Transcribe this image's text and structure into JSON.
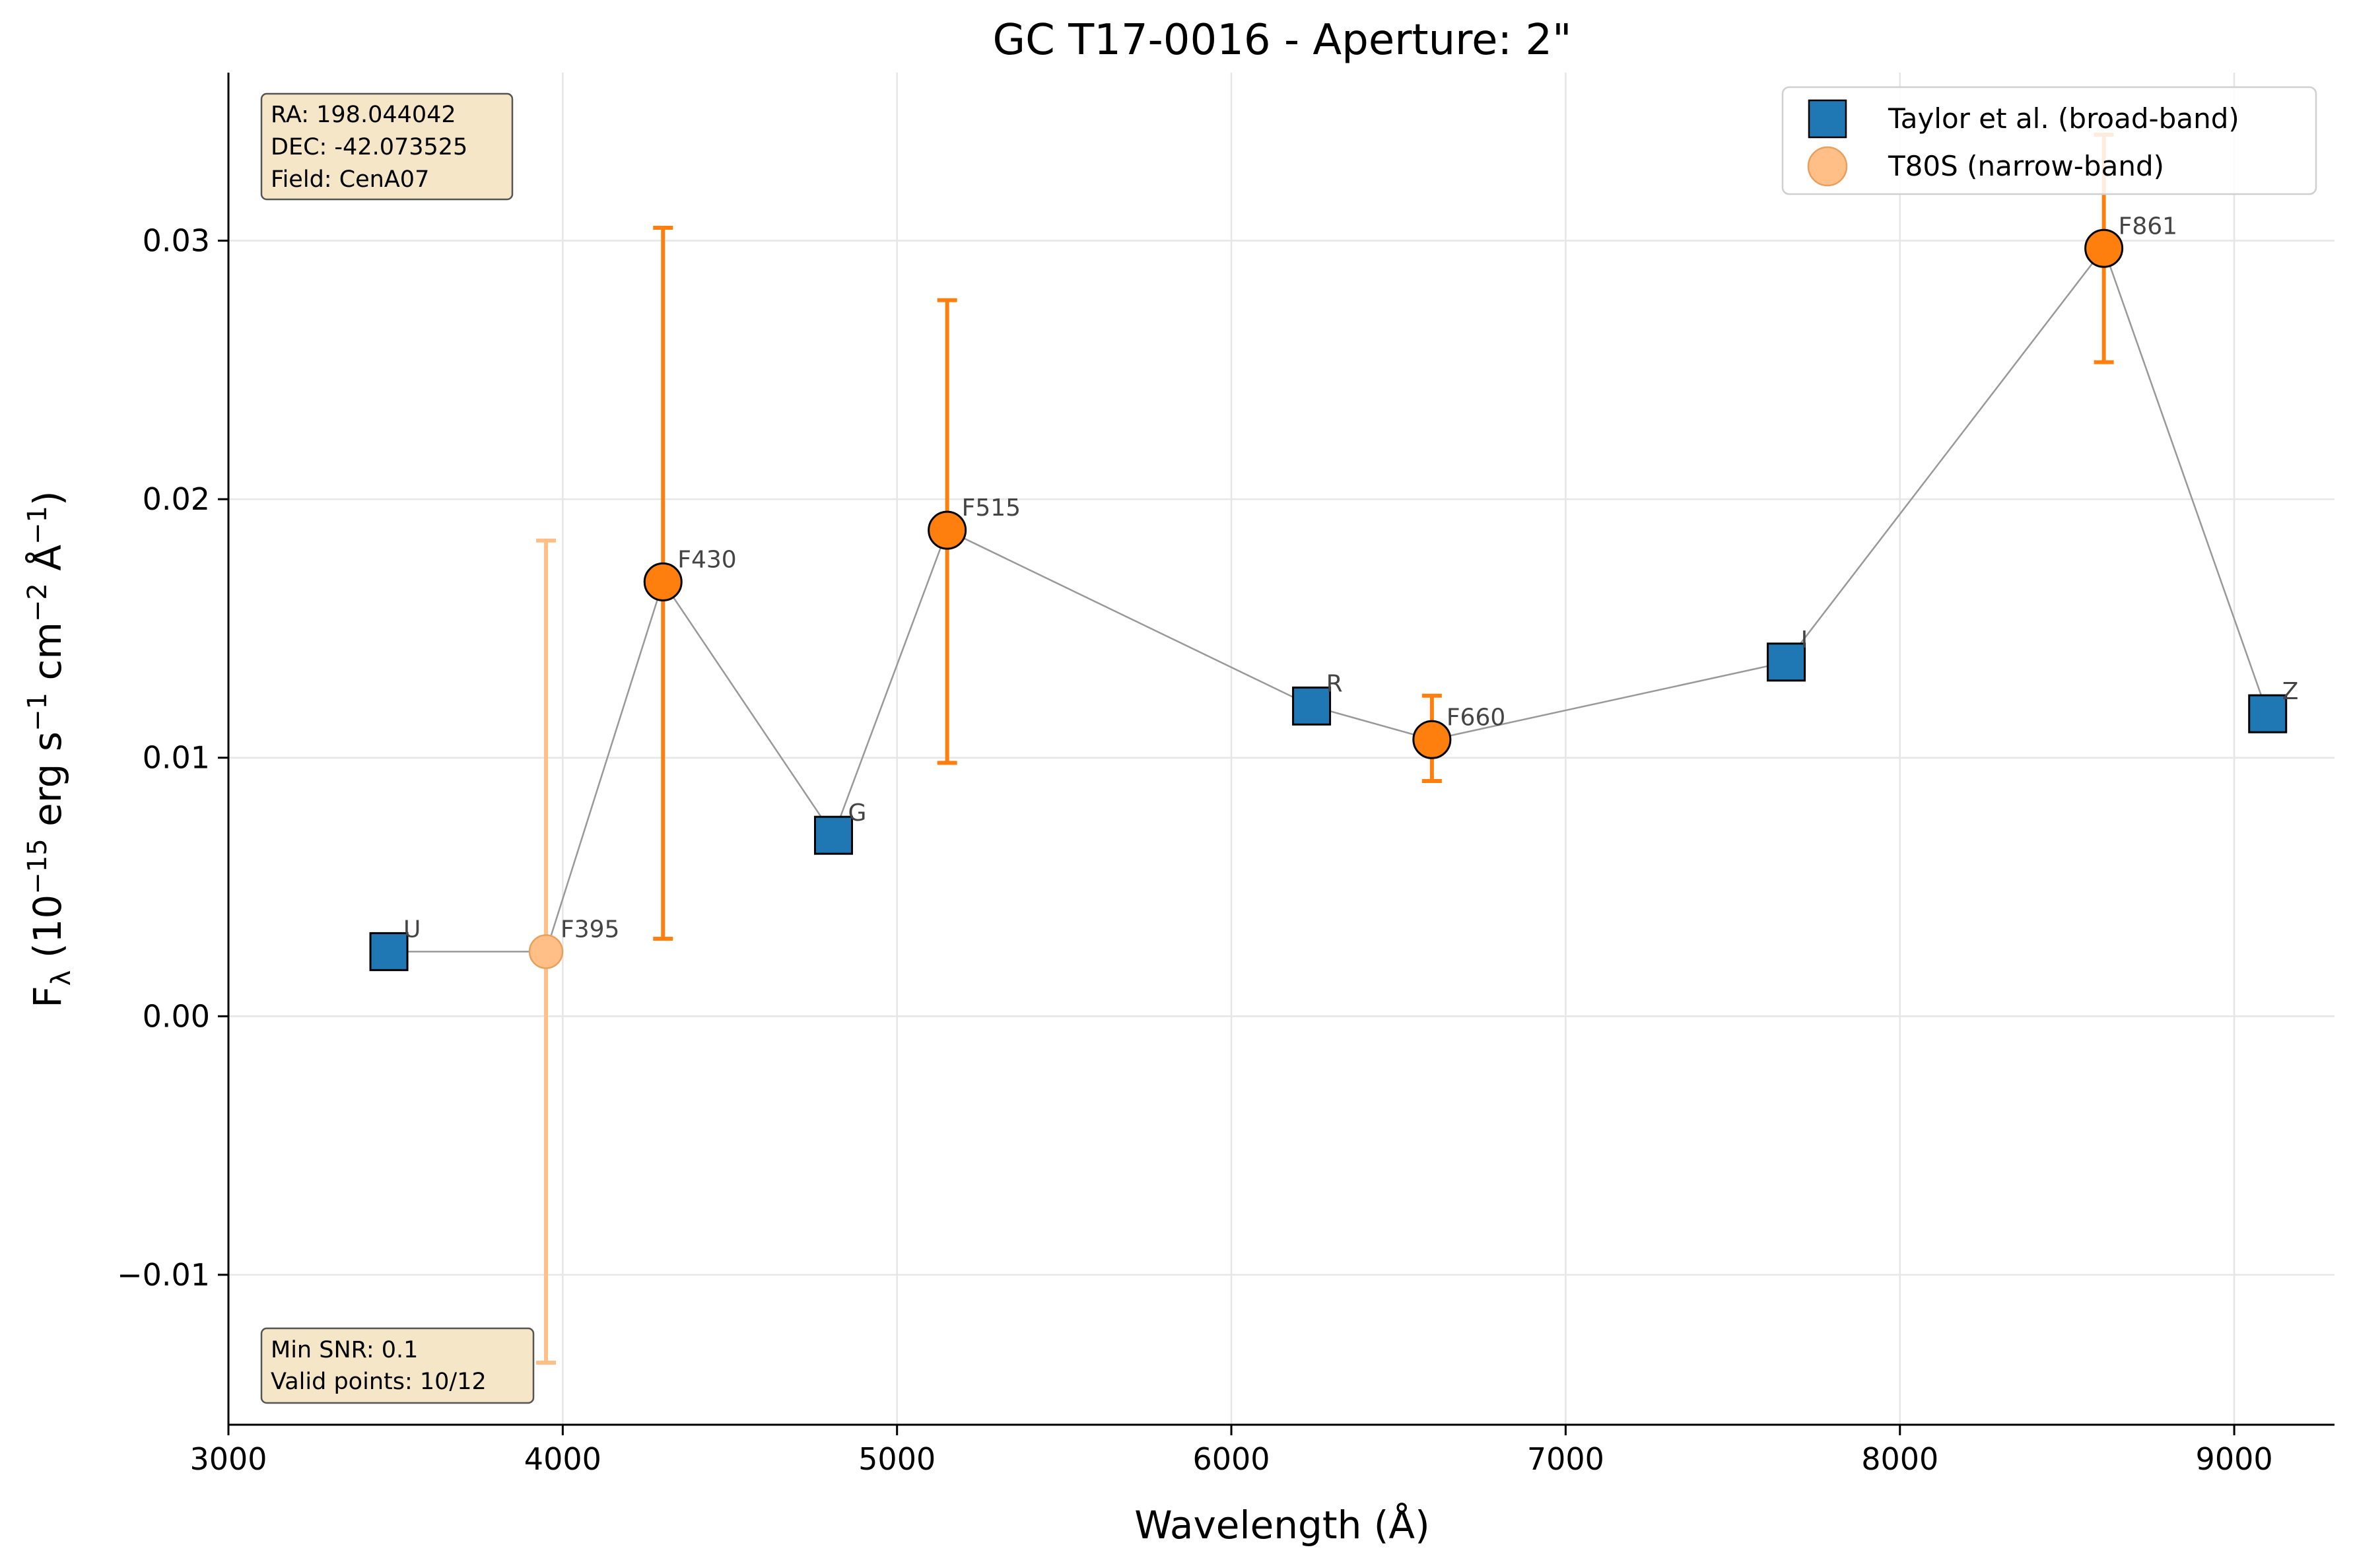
{
  "chart_data": {
    "type": "scatter",
    "title": "GC T17-0016 - Aperture: 2\"",
    "xlabel": "Wavelength (Å)",
    "ylabel": {
      "base": "F",
      "sub": "λ",
      "text": " (10",
      "exp1": "−15",
      "text2": " erg s",
      "exp2": "−1",
      "text3": " cm",
      "exp3": "−2",
      "text4": " Å",
      "exp4": "−1",
      "text5": ")"
    },
    "xlim": [
      3000,
      9300
    ],
    "ylim": [
      -0.0158,
      0.0365
    ],
    "xticks": [
      3000,
      4000,
      5000,
      6000,
      7000,
      8000,
      9000
    ],
    "yticks": [
      -0.01,
      0.0,
      0.01,
      0.02,
      0.03
    ],
    "ytick_labels": [
      "−0.01",
      "0.00",
      "0.01",
      "0.02",
      "0.03"
    ],
    "grid": true,
    "legend_position": "top-right",
    "series": [
      {
        "name": "Taylor et al. (broad-band)",
        "marker": "square",
        "color": "#1f77b4",
        "points": [
          {
            "label": "U",
            "x": 3480,
            "y": 0.0025
          },
          {
            "label": "G",
            "x": 4810,
            "y": 0.007
          },
          {
            "label": "R",
            "x": 6240,
            "y": 0.012
          },
          {
            "label": "I",
            "x": 7660,
            "y": 0.0137
          },
          {
            "label": "Z",
            "x": 9100,
            "y": 0.0117
          }
        ]
      },
      {
        "name": "T80S (narrow-band)",
        "marker": "circle",
        "color": "#ff7f0e",
        "points": [
          {
            "label": "F395",
            "x": 3950,
            "y": 0.0025,
            "err_low": -0.0134,
            "err_high": 0.0184,
            "faded": true
          },
          {
            "label": "F430",
            "x": 4300,
            "y": 0.0168,
            "err_low": 0.003,
            "err_high": 0.0305,
            "faded": false
          },
          {
            "label": "F515",
            "x": 5150,
            "y": 0.0188,
            "err_low": 0.0098,
            "err_high": 0.0277,
            "faded": false
          },
          {
            "label": "F660",
            "x": 6600,
            "y": 0.0107,
            "err_low": 0.0091,
            "err_high": 0.0124,
            "faded": false
          },
          {
            "label": "F861",
            "x": 8610,
            "y": 0.0297,
            "err_low": 0.0253,
            "err_high": 0.0341,
            "faded": false
          }
        ]
      }
    ],
    "connecting_line_order": [
      "U",
      "F395",
      "F430",
      "G",
      "F515",
      "R",
      "F660",
      "I",
      "F861",
      "Z"
    ],
    "info_box_top": [
      "RA: 198.044042",
      "DEC: -42.073525",
      "Field: CenA07"
    ],
    "info_box_bottom": [
      "Min SNR: 0.1",
      "Valid points: 10/12"
    ]
  },
  "colors": {
    "broad": "#1f77b4",
    "narrow": "#ff7f0e",
    "narrow_faded": "#ffbf86",
    "line": "#999999",
    "grid": "#e6e6e6",
    "info_box_fill": "#f5e6c8",
    "info_box_stroke": "#555555"
  }
}
